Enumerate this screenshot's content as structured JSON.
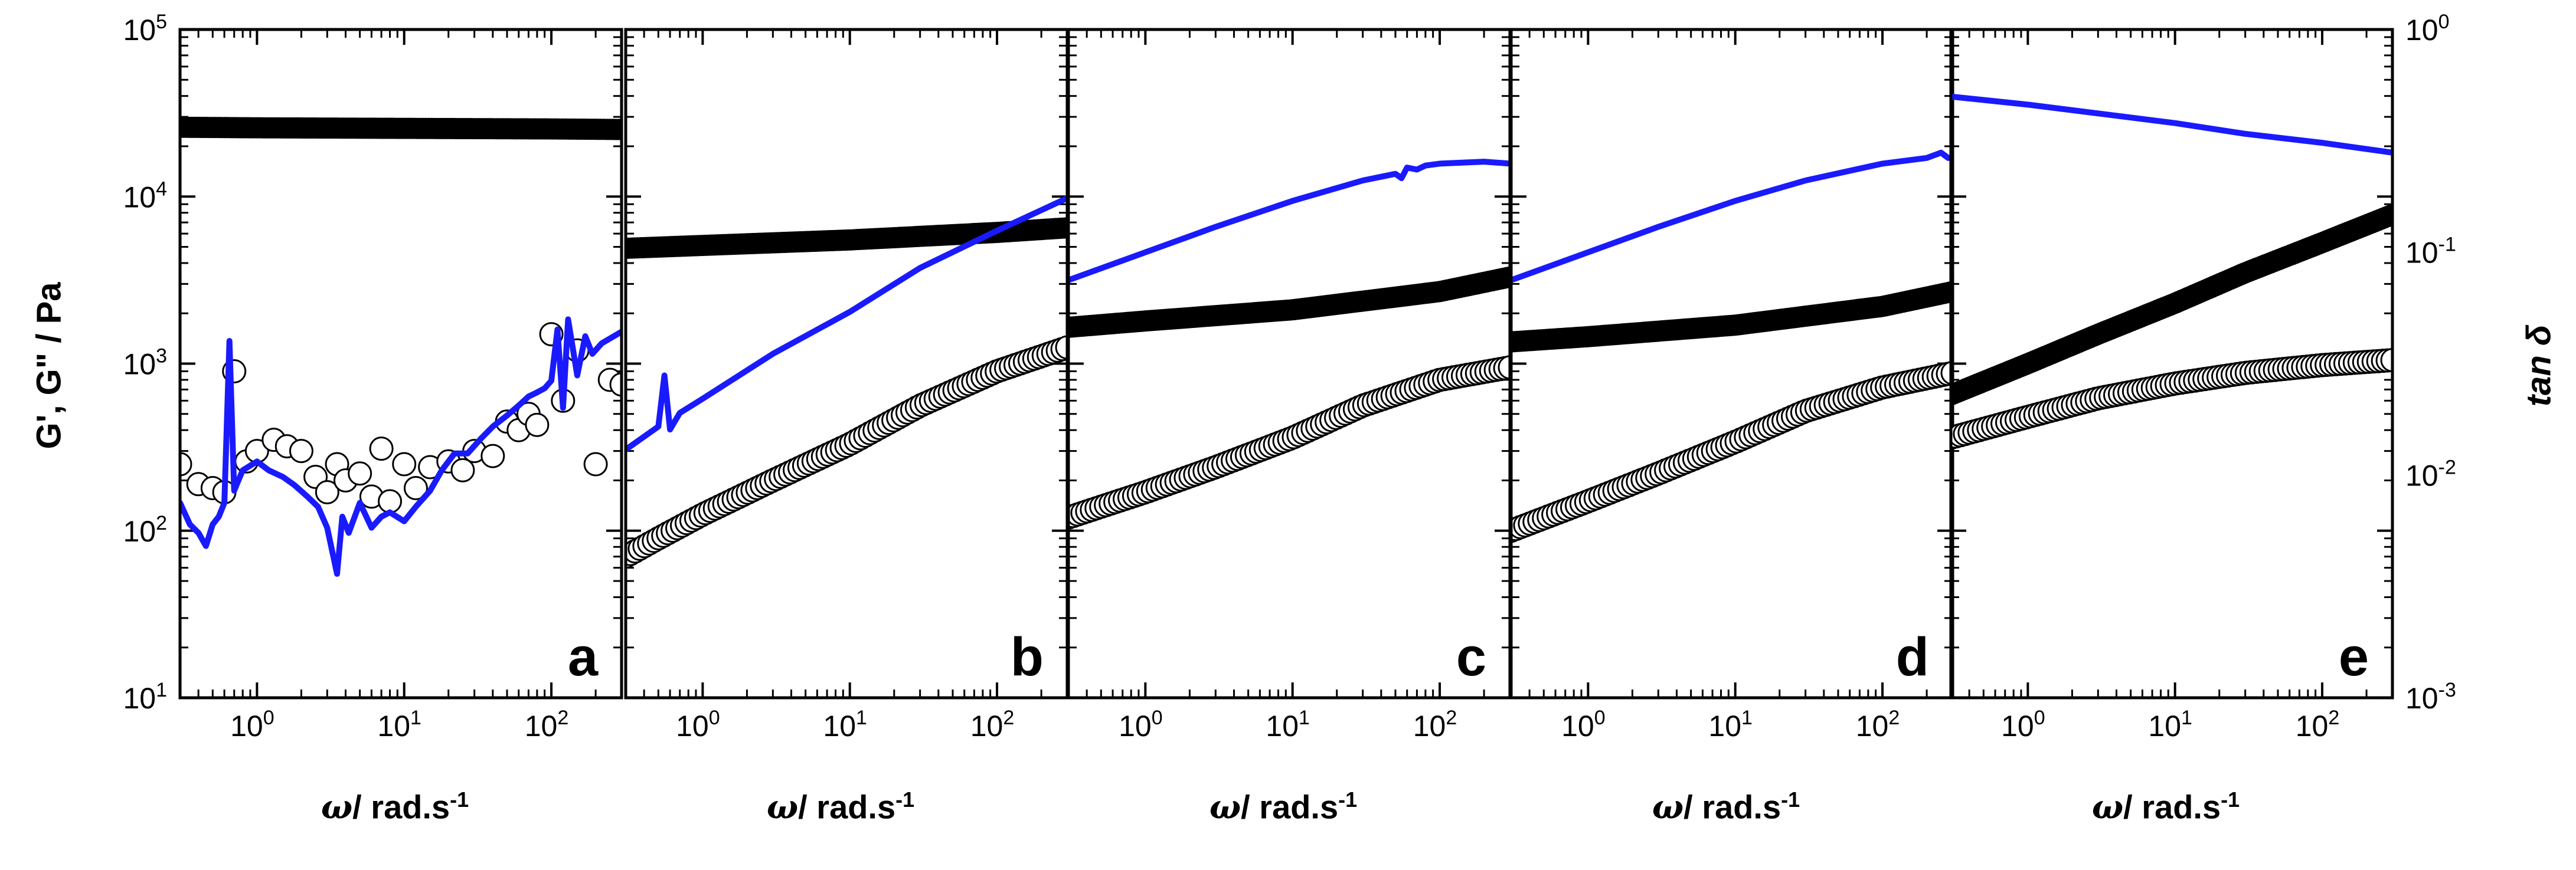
{
  "chart_data": {
    "type": "scatter",
    "figure_layout": "five side-by-side panels sharing log axes",
    "left_axis_label": "G', G\" / Pa",
    "right_axis_label": "tan δ",
    "x_axis_label": {
      "symbol": "ω",
      "text": "/ rad.s",
      "sup": "-1"
    },
    "xlim": [
      0.3,
      300
    ],
    "x_ticks": [
      {
        "base": "10",
        "exp": "0",
        "value": 1
      },
      {
        "base": "10",
        "exp": "1",
        "value": 10
      },
      {
        "base": "10",
        "exp": "2",
        "value": 100
      }
    ],
    "left_ylim": [
      10,
      100000
    ],
    "left_y_ticks": [
      {
        "base": "10",
        "exp": "1",
        "value": 10
      },
      {
        "base": "10",
        "exp": "2",
        "value": 100
      },
      {
        "base": "10",
        "exp": "3",
        "value": 1000
      },
      {
        "base": "10",
        "exp": "4",
        "value": 10000
      },
      {
        "base": "10",
        "exp": "5",
        "value": 100000
      }
    ],
    "right_ylim": [
      0.001,
      1
    ],
    "right_y_ticks": [
      {
        "base": "10",
        "exp": "-3",
        "value": 0.001
      },
      {
        "base": "10",
        "exp": "-2",
        "value": 0.01
      },
      {
        "base": "10",
        "exp": "-1",
        "value": 0.1
      },
      {
        "base": "10",
        "exp": "0",
        "value": 1
      }
    ],
    "colors": {
      "tan_delta": "#1a1aff",
      "markers": "#000000",
      "axes": "#000000"
    },
    "panels": [
      {
        "letter": "a",
        "G_prime": {
          "x": [
            0.3,
            1,
            10,
            100,
            300
          ],
          "y": [
            26000,
            25800,
            25600,
            25400,
            25200
          ]
        },
        "G_double_prime": {
          "x": [
            0.3,
            0.4,
            0.5,
            0.6,
            0.7,
            0.85,
            1,
            1.3,
            1.6,
            2,
            2.5,
            3,
            3.5,
            4,
            5,
            6,
            7,
            8,
            10,
            12,
            15,
            20,
            25,
            30,
            40,
            50,
            60,
            70,
            80,
            100,
            120,
            150,
            200,
            250,
            300
          ],
          "y": [
            250,
            190,
            180,
            170,
            900,
            260,
            300,
            350,
            320,
            300,
            210,
            170,
            250,
            200,
            220,
            160,
            310,
            150,
            250,
            180,
            240,
            260,
            230,
            300,
            280,
            450,
            400,
            500,
            430,
            1500,
            600,
            1200,
            250,
            800,
            750
          ]
        },
        "tan_delta": {
          "x": [
            0.3,
            0.35,
            0.4,
            0.45,
            0.5,
            0.55,
            0.6,
            0.65,
            0.7,
            0.75,
            0.8,
            1,
            1.2,
            1.5,
            1.8,
            2.2,
            2.6,
            3,
            3.5,
            3.8,
            4.2,
            5,
            6,
            7,
            8,
            10,
            12,
            15,
            18,
            22,
            27,
            33,
            40,
            50,
            60,
            70,
            80,
            90,
            100,
            110,
            120,
            130,
            150,
            170,
            190,
            220,
            250,
            300
          ],
          "y": [
            0.0075,
            0.006,
            0.0055,
            0.0048,
            0.006,
            0.0065,
            0.0075,
            0.04,
            0.0085,
            0.0095,
            0.0105,
            0.0115,
            0.0105,
            0.0098,
            0.009,
            0.008,
            0.0072,
            0.0058,
            0.0036,
            0.0065,
            0.0055,
            0.0075,
            0.0058,
            0.0065,
            0.0068,
            0.0062,
            0.0072,
            0.0085,
            0.0105,
            0.0125,
            0.0125,
            0.0145,
            0.0165,
            0.0185,
            0.0205,
            0.0225,
            0.0235,
            0.0245,
            0.0265,
            0.045,
            0.02,
            0.05,
            0.028,
            0.042,
            0.035,
            0.039,
            0.041,
            0.044
          ]
        }
      },
      {
        "letter": "b",
        "G_prime": {
          "x": [
            0.3,
            1,
            10,
            100,
            300
          ],
          "y": [
            4900,
            5100,
            5500,
            6100,
            6500
          ]
        },
        "G_double_prime": {
          "x": [
            0.3,
            0.5,
            1,
            3,
            10,
            30,
            100,
            300
          ],
          "y": [
            70,
            90,
            125,
            200,
            330,
            560,
            900,
            1250
          ]
        },
        "tan_delta": {
          "x": [
            0.3,
            0.5,
            0.55,
            0.6,
            0.7,
            1,
            3,
            10,
            30,
            100,
            300
          ],
          "y": [
            0.013,
            0.0165,
            0.028,
            0.016,
            0.019,
            0.022,
            0.035,
            0.054,
            0.085,
            0.125,
            0.175
          ]
        }
      },
      {
        "letter": "c",
        "G_prime": {
          "x": [
            0.3,
            1,
            10,
            100,
            300
          ],
          "y": [
            1650,
            1800,
            2100,
            2700,
            3300
          ]
        },
        "G_double_prime": {
          "x": [
            0.3,
            1,
            3,
            10,
            30,
            100,
            300
          ],
          "y": [
            120,
            170,
            240,
            360,
            560,
            800,
            950
          ]
        },
        "tan_delta": {
          "x": [
            0.3,
            1,
            3,
            10,
            30,
            50,
            55,
            60,
            70,
            80,
            100,
            200,
            300
          ],
          "y": [
            0.075,
            0.1,
            0.13,
            0.17,
            0.21,
            0.225,
            0.215,
            0.24,
            0.235,
            0.245,
            0.25,
            0.255,
            0.25
          ]
        }
      },
      {
        "letter": "d",
        "G_prime": {
          "x": [
            0.3,
            1,
            10,
            100,
            300
          ],
          "y": [
            1350,
            1450,
            1700,
            2200,
            2700
          ]
        },
        "G_double_prime": {
          "x": [
            0.3,
            1,
            3,
            10,
            30,
            100,
            300
          ],
          "y": [
            100,
            150,
            220,
            340,
            520,
            720,
            880
          ]
        },
        "tan_delta": {
          "x": [
            0.3,
            1,
            3,
            10,
            30,
            100,
            200,
            250,
            280,
            300
          ],
          "y": [
            0.075,
            0.1,
            0.13,
            0.17,
            0.21,
            0.25,
            0.265,
            0.28,
            0.265,
            0.265
          ]
        }
      },
      {
        "letter": "e",
        "G_prime": {
          "x": [
            0.3,
            1,
            3,
            10,
            30,
            100,
            300
          ],
          "y": [
            650,
            1000,
            1500,
            2300,
            3500,
            5300,
            7800
          ]
        },
        "G_double_prime": {
          "x": [
            0.3,
            1,
            3,
            10,
            30,
            100,
            300
          ],
          "y": [
            360,
            480,
            620,
            760,
            880,
            980,
            1050
          ]
        },
        "tan_delta": {
          "x": [
            0.3,
            1,
            3,
            10,
            30,
            100,
            300
          ],
          "y": [
            0.5,
            0.46,
            0.42,
            0.38,
            0.34,
            0.31,
            0.28
          ]
        }
      }
    ]
  }
}
